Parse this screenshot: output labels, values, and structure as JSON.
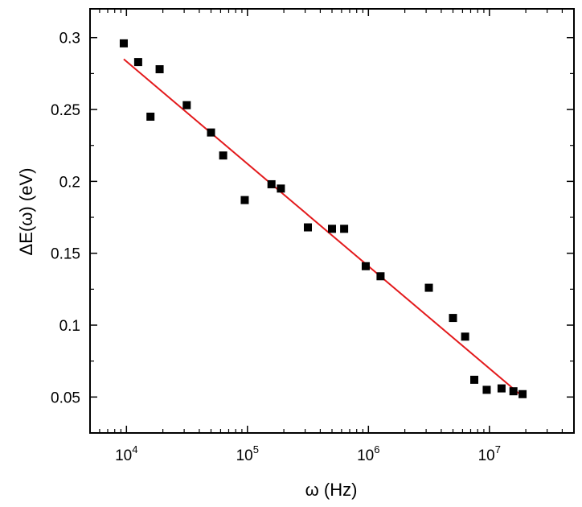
{
  "chart_data": {
    "type": "scatter",
    "xlabel": "ω (Hz)",
    "ylabel": "ΔE(ω) (eV)",
    "x_scale": "log",
    "xlim": [
      5000,
      50000000
    ],
    "ylim": [
      0.025,
      0.32
    ],
    "x_ticks": [
      {
        "value": 10000,
        "base": "10",
        "exp": "4"
      },
      {
        "value": 100000,
        "base": "10",
        "exp": "5"
      },
      {
        "value": 1000000,
        "base": "10",
        "exp": "6"
      },
      {
        "value": 10000000,
        "base": "10",
        "exp": "7"
      }
    ],
    "y_ticks": [
      {
        "value": 0.05,
        "label": "0.05"
      },
      {
        "value": 0.1,
        "label": "0.1"
      },
      {
        "value": 0.15,
        "label": "0.15"
      },
      {
        "value": 0.2,
        "label": "0.2"
      },
      {
        "value": 0.25,
        "label": "0.25"
      },
      {
        "value": 0.3,
        "label": "0.3"
      }
    ],
    "grid": false,
    "series": [
      {
        "kind": "points",
        "color": "#000000",
        "marker": "square",
        "points": [
          [
            9500,
            0.296
          ],
          [
            12500,
            0.283
          ],
          [
            15800,
            0.245
          ],
          [
            18800,
            0.278
          ],
          [
            31500,
            0.253
          ],
          [
            50000,
            0.234
          ],
          [
            63000,
            0.218
          ],
          [
            95000,
            0.187
          ],
          [
            158000,
            0.198
          ],
          [
            189000,
            0.195
          ],
          [
            316000,
            0.168
          ],
          [
            500000,
            0.167
          ],
          [
            630000,
            0.167
          ],
          [
            950000,
            0.141
          ],
          [
            1260000,
            0.134
          ],
          [
            3160000,
            0.126
          ],
          [
            5000000,
            0.105
          ],
          [
            6300000,
            0.092
          ],
          [
            7500000,
            0.062
          ],
          [
            9500000,
            0.055
          ],
          [
            12600000,
            0.056
          ],
          [
            15800000,
            0.054
          ],
          [
            18800000,
            0.052
          ]
        ]
      },
      {
        "kind": "fit-line",
        "color": "#e31a1c",
        "points": [
          [
            9500,
            0.285
          ],
          [
            19000000,
            0.05
          ]
        ]
      }
    ]
  }
}
